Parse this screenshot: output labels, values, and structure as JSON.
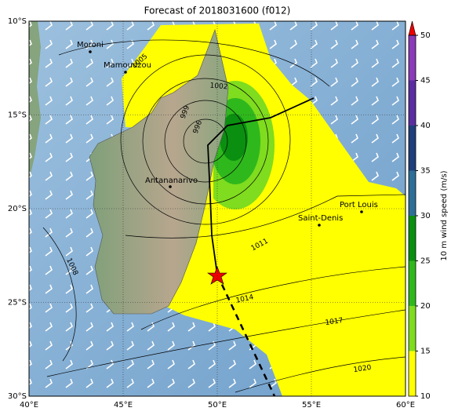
{
  "title": "Forecast of 2018031600 (f012)",
  "map": {
    "lon_ticks": [
      {
        "value": 40,
        "label": "40°E"
      },
      {
        "value": 45,
        "label": "45°E"
      },
      {
        "value": 50,
        "label": "50°E"
      },
      {
        "value": 55,
        "label": "55°E"
      },
      {
        "value": 60,
        "label": "60°E"
      }
    ],
    "lat_ticks": [
      {
        "value": -10,
        "label": "10°S"
      },
      {
        "value": -15,
        "label": "15°S"
      },
      {
        "value": -20,
        "label": "20°S"
      },
      {
        "value": -25,
        "label": "25°S"
      },
      {
        "value": -30,
        "label": "30°S"
      }
    ],
    "cities": [
      "Moroni",
      "Mamoudzou",
      "Antananarivo",
      "Saint-Denis",
      "Port Louis"
    ],
    "isobars": [
      "1005",
      "1002",
      "999",
      "996",
      "1008",
      "1011",
      "1014",
      "1017",
      "1020"
    ]
  },
  "colorbar": {
    "label": "10 m wind speed (m/s)",
    "ticks": [
      10,
      15,
      20,
      25,
      30,
      35,
      40,
      45,
      50
    ],
    "lim": [
      10,
      50
    ]
  }
}
